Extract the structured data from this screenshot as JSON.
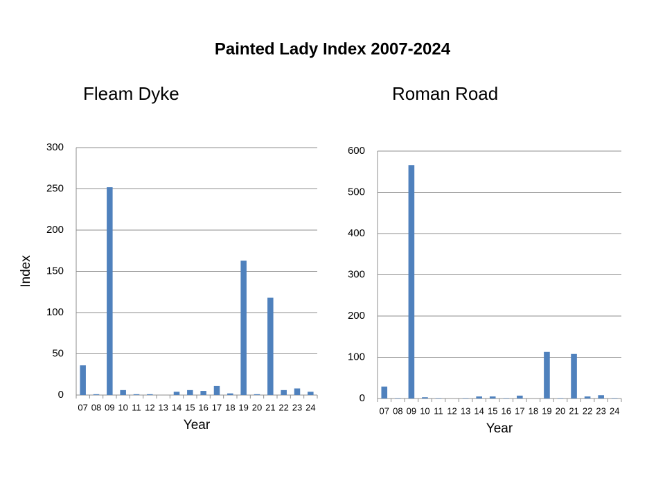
{
  "title": "Painted Lady Index 2007-2024",
  "chart_data": [
    {
      "type": "bar",
      "title": "Fleam Dyke",
      "x_label": "Year",
      "y_label": "Index",
      "categories": [
        "07",
        "08",
        "09",
        "10",
        "11",
        "12",
        "13",
        "14",
        "15",
        "16",
        "17",
        "18",
        "19",
        "20",
        "21",
        "22",
        "23",
        "24"
      ],
      "values": [
        36,
        1,
        252,
        6,
        1,
        1,
        0,
        4,
        6,
        5,
        11,
        2,
        163,
        1,
        118,
        6,
        8,
        4
      ],
      "color": "#4f81bd",
      "ylim": [
        0,
        300
      ],
      "yticks": [
        0,
        50,
        100,
        150,
        200,
        250,
        300
      ],
      "grid": true
    },
    {
      "type": "bar",
      "title": "Roman Road",
      "x_label": "Year",
      "categories": [
        "07",
        "08",
        "09",
        "10",
        "11",
        "12",
        "13",
        "14",
        "15",
        "16",
        "17",
        "18",
        "19",
        "20",
        "21",
        "22",
        "23",
        "24"
      ],
      "values": [
        29,
        1,
        566,
        3,
        1,
        0,
        1,
        5,
        5,
        1,
        7,
        0,
        113,
        1,
        108,
        5,
        8,
        1
      ],
      "color": "#4f81bd",
      "ylim": [
        0,
        600
      ],
      "yticks": [
        0,
        100,
        200,
        300,
        400,
        500,
        600
      ],
      "grid": true
    }
  ]
}
